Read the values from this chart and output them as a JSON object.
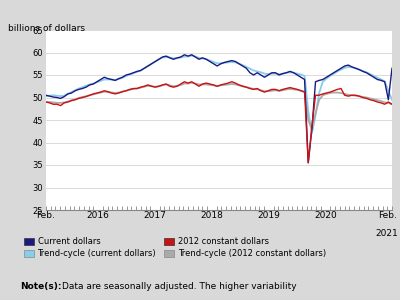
{
  "title_ylabel": "billions of dollars",
  "ylim": [
    25,
    65
  ],
  "yticks": [
    25,
    30,
    35,
    40,
    45,
    50,
    55,
    60,
    65
  ],
  "bg_color": "#d9d9d9",
  "plot_bg_color": "#ffffff",
  "colors": {
    "current_dollars": "#1a1a80",
    "trend_current": "#87ceeb",
    "constant_dollars": "#cc1111",
    "trend_constant": "#aaaaaa"
  },
  "x_start": 2015.083,
  "x_end": 2021.167,
  "xtick_positions": [
    2015.083,
    2016.0,
    2017.0,
    2018.0,
    2019.0,
    2020.0,
    2021.083
  ],
  "xtick_labels": [
    "Feb.",
    "2016",
    "2017",
    "2018",
    "2019",
    "2020",
    "Feb."
  ],
  "xtick_labels2": [
    "",
    "",
    "",
    "",
    "",
    "",
    "2021"
  ],
  "current_dollars": [
    50.5,
    50.3,
    50.1,
    50.0,
    49.8,
    50.2,
    50.8,
    51.0,
    51.5,
    51.8,
    52.0,
    52.3,
    52.8,
    53.0,
    53.5,
    54.0,
    54.5,
    54.2,
    54.0,
    53.8,
    54.2,
    54.5,
    55.0,
    55.2,
    55.5,
    55.8,
    56.0,
    56.5,
    57.0,
    57.5,
    58.0,
    58.5,
    59.0,
    59.2,
    58.8,
    58.5,
    58.8,
    59.0,
    59.5,
    59.2,
    59.5,
    59.0,
    58.5,
    58.8,
    58.5,
    58.0,
    57.5,
    57.0,
    57.5,
    57.8,
    58.0,
    58.2,
    58.0,
    57.5,
    57.0,
    56.5,
    55.5,
    55.0,
    55.5,
    55.0,
    54.5,
    55.0,
    55.5,
    55.5,
    55.0,
    55.3,
    55.5,
    55.8,
    55.5,
    55.0,
    54.5,
    54.0,
    35.5,
    43.0,
    53.5,
    53.8,
    54.0,
    54.5,
    55.0,
    55.5,
    56.0,
    56.5,
    57.0,
    57.2,
    56.8,
    56.5,
    56.2,
    55.8,
    55.5,
    55.0,
    54.5,
    54.0,
    53.8,
    53.5,
    49.5,
    56.5
  ],
  "trend_current_dollars": [
    50.3,
    50.4,
    50.5,
    50.4,
    50.3,
    50.4,
    50.8,
    51.2,
    51.6,
    52.0,
    52.3,
    52.6,
    52.9,
    53.1,
    53.4,
    53.7,
    54.0,
    54.0,
    54.0,
    53.9,
    54.1,
    54.4,
    54.8,
    55.1,
    55.4,
    55.7,
    56.0,
    56.5,
    57.0,
    57.5,
    58.0,
    58.5,
    58.9,
    59.0,
    58.9,
    58.7,
    58.7,
    58.9,
    59.1,
    59.1,
    59.3,
    59.1,
    58.8,
    58.7,
    58.5,
    58.2,
    57.9,
    57.6,
    57.6,
    57.7,
    57.8,
    57.9,
    57.8,
    57.5,
    57.2,
    56.8,
    56.4,
    56.0,
    55.8,
    55.6,
    55.3,
    55.2,
    55.3,
    55.3,
    55.2,
    55.3,
    55.5,
    55.6,
    55.5,
    55.3,
    55.1,
    54.8,
    47.0,
    42.0,
    46.0,
    51.0,
    53.5,
    54.2,
    54.8,
    55.3,
    55.8,
    56.2,
    56.6,
    56.8,
    56.7,
    56.5,
    56.2,
    55.9,
    55.6,
    55.2,
    54.8,
    54.4,
    54.0,
    53.6,
    51.5,
    49.5
  ],
  "constant_dollars": [
    49.0,
    48.8,
    48.5,
    48.5,
    48.2,
    48.8,
    49.0,
    49.3,
    49.5,
    49.8,
    50.0,
    50.2,
    50.5,
    50.8,
    51.0,
    51.2,
    51.5,
    51.3,
    51.0,
    50.8,
    51.0,
    51.3,
    51.5,
    51.8,
    52.0,
    52.0,
    52.3,
    52.5,
    52.8,
    52.5,
    52.3,
    52.5,
    52.8,
    53.0,
    52.5,
    52.3,
    52.5,
    53.0,
    53.5,
    53.2,
    53.5,
    53.0,
    52.5,
    53.0,
    53.2,
    53.0,
    52.8,
    52.5,
    52.8,
    53.0,
    53.2,
    53.5,
    53.2,
    52.8,
    52.5,
    52.3,
    52.0,
    51.8,
    52.0,
    51.5,
    51.2,
    51.5,
    51.8,
    51.8,
    51.5,
    51.8,
    52.0,
    52.2,
    52.0,
    51.8,
    51.5,
    51.2,
    35.5,
    43.5,
    50.5,
    50.5,
    50.8,
    51.0,
    51.2,
    51.5,
    51.8,
    52.0,
    50.5,
    50.3,
    50.5,
    50.5,
    50.3,
    50.0,
    49.8,
    49.5,
    49.3,
    49.0,
    48.8,
    48.5,
    49.0,
    48.5
  ],
  "trend_constant_dollars": [
    49.0,
    49.0,
    48.9,
    48.8,
    48.8,
    48.9,
    49.1,
    49.4,
    49.6,
    49.9,
    50.1,
    50.3,
    50.5,
    50.7,
    50.9,
    51.1,
    51.3,
    51.2,
    51.1,
    51.0,
    51.1,
    51.3,
    51.5,
    51.7,
    51.9,
    52.0,
    52.2,
    52.4,
    52.6,
    52.5,
    52.4,
    52.5,
    52.7,
    52.9,
    52.7,
    52.5,
    52.6,
    52.8,
    53.1,
    53.1,
    53.3,
    53.1,
    52.9,
    52.9,
    52.9,
    52.8,
    52.7,
    52.5,
    52.7,
    52.8,
    52.9,
    53.0,
    52.9,
    52.7,
    52.5,
    52.3,
    52.1,
    51.9,
    51.8,
    51.6,
    51.4,
    51.4,
    51.5,
    51.6,
    51.5,
    51.6,
    51.8,
    51.9,
    51.8,
    51.7,
    51.5,
    51.3,
    45.0,
    43.0,
    46.5,
    49.5,
    50.5,
    50.8,
    51.0,
    51.1,
    51.1,
    51.0,
    50.8,
    50.6,
    50.5,
    50.4,
    50.3,
    50.1,
    50.0,
    49.8,
    49.6,
    49.4,
    49.2,
    48.9,
    48.8,
    48.5
  ],
  "legend_labels": [
    "Current dollars",
    "Trend-cycle (current dollars)",
    "2012 constant dollars",
    "Trend-cycle (2012 constant dollars)"
  ],
  "note_bold": "Note(s):",
  "note_text": "    Data are seasonally adjusted. The higher variability"
}
